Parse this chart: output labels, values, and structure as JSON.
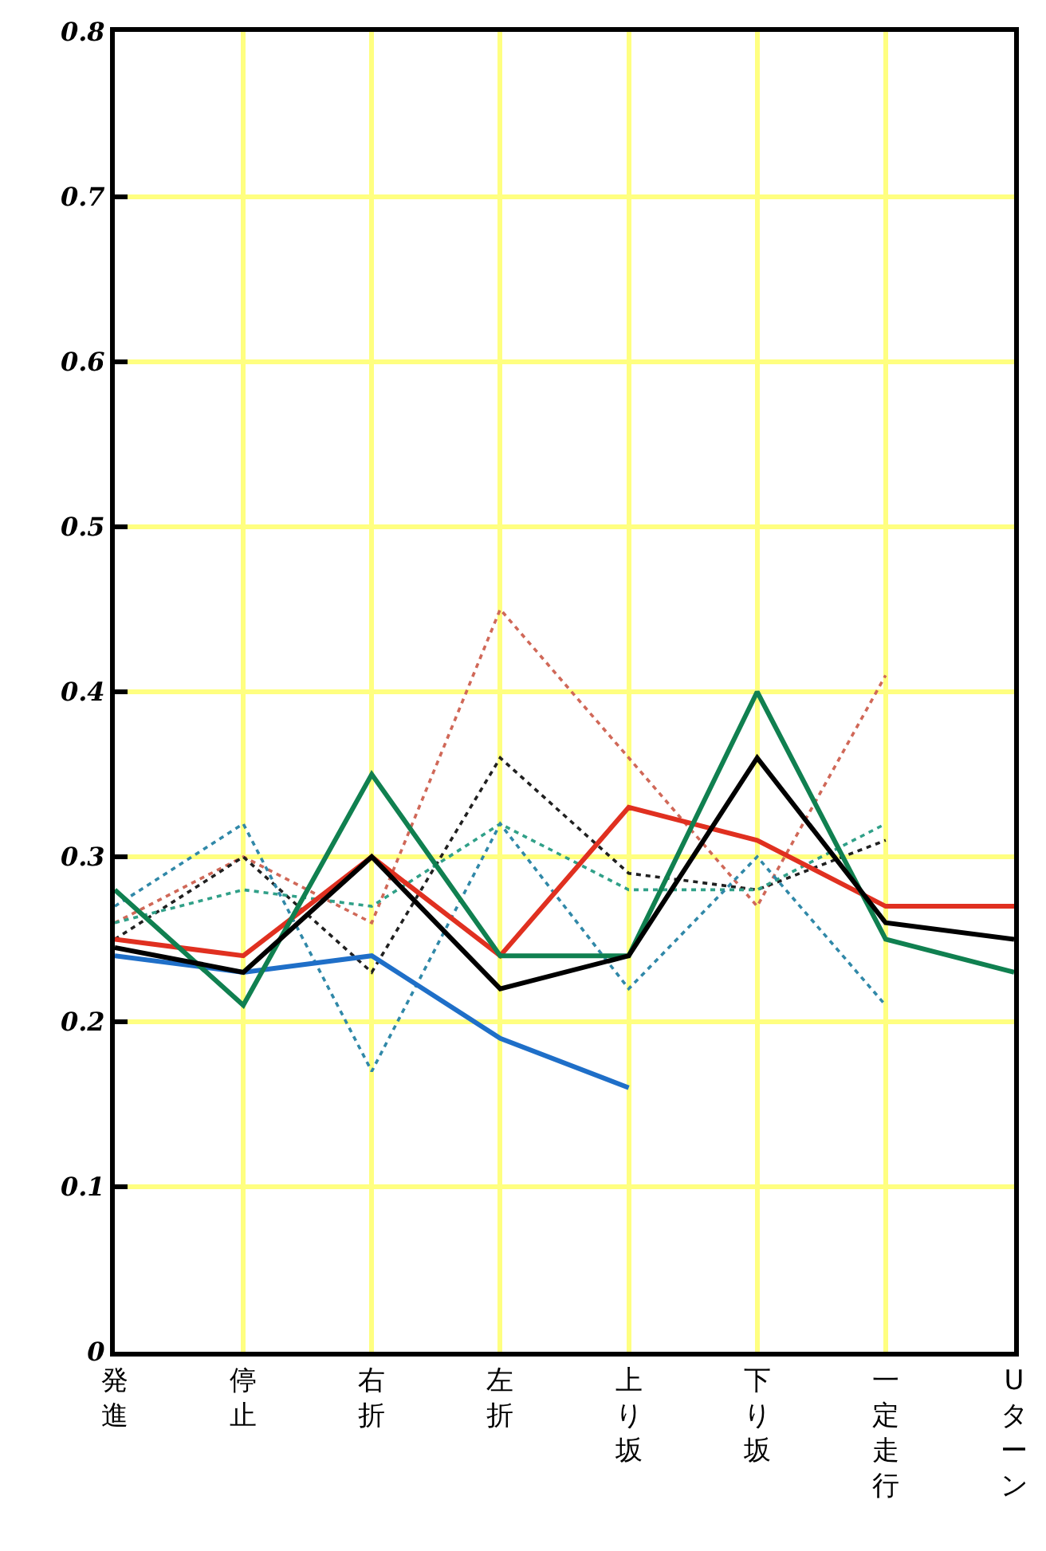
{
  "chart_data": {
    "type": "line",
    "categories": [
      "発進",
      "停止",
      "右折",
      "左折",
      "上り坂",
      "下り坂",
      "一定走行",
      "Uターン"
    ],
    "ylim": [
      0,
      0.8
    ],
    "yticks": [
      0,
      0.1,
      0.2,
      0.3,
      0.4,
      0.5,
      0.6,
      0.7,
      0.8
    ],
    "grid": true,
    "marker": "none",
    "series": [
      {
        "color": "#d06858",
        "line_style": "dotted",
        "values": [
          0.26,
          0.3,
          0.26,
          0.45,
          0.36,
          0.27,
          0.41,
          null
        ]
      },
      {
        "color": "#202020",
        "line_style": "dotted",
        "values": [
          0.25,
          0.3,
          0.23,
          0.36,
          0.29,
          0.28,
          0.31,
          null
        ]
      },
      {
        "color": "#30a088",
        "line_style": "dotted",
        "values": [
          0.26,
          0.28,
          0.27,
          0.32,
          0.28,
          0.28,
          0.32,
          null
        ]
      },
      {
        "color": "#3088a8",
        "line_style": "dotted",
        "values": [
          0.27,
          0.32,
          0.17,
          0.32,
          0.22,
          0.3,
          0.21,
          null
        ]
      },
      {
        "color": "#1f6fc8",
        "line_style": "solid",
        "values": [
          0.24,
          0.23,
          0.24,
          0.19,
          0.16,
          null,
          null,
          null
        ]
      },
      {
        "color": "#e03020",
        "line_style": "solid",
        "values": [
          0.25,
          0.24,
          0.3,
          0.24,
          0.33,
          0.31,
          0.27,
          0.27
        ]
      },
      {
        "color": "#108050",
        "line_style": "solid",
        "values": [
          0.28,
          0.21,
          0.35,
          0.24,
          0.24,
          0.4,
          0.25,
          0.23
        ]
      },
      {
        "color": "#000000",
        "line_style": "solid",
        "values": [
          0.245,
          0.23,
          0.3,
          0.22,
          0.24,
          0.36,
          0.26,
          0.25
        ]
      }
    ]
  }
}
